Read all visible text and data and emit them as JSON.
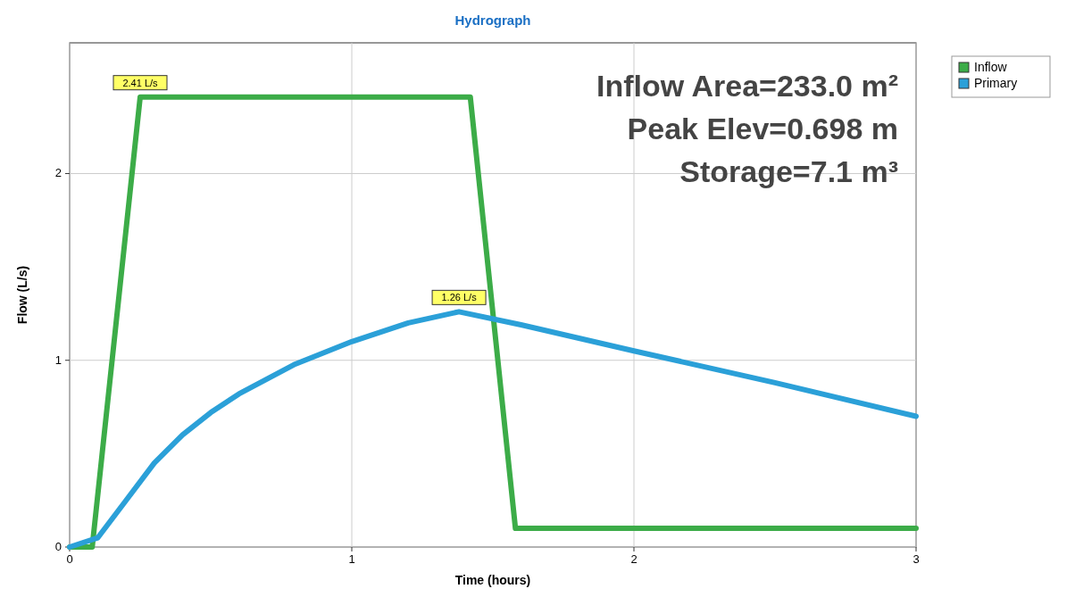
{
  "chart_data": {
    "type": "line",
    "title": "Hydrograph",
    "xlabel": "Time  (hours)",
    "ylabel": "Flow  (L/s)",
    "xlim": [
      0,
      3
    ],
    "ylim": [
      0,
      2.7
    ],
    "xticks": [
      0,
      1,
      2,
      3
    ],
    "yticks": [
      0,
      1,
      2
    ],
    "grid": true,
    "legend": "top right",
    "series": [
      {
        "name": "Inflow",
        "color": "#3cac48",
        "x": [
          0,
          0.08,
          0.25,
          1.42,
          1.58,
          3.0
        ],
        "values": [
          0,
          0,
          2.41,
          2.41,
          0.1,
          0.1
        ]
      },
      {
        "name": "Primary",
        "color": "#2ba0d8",
        "x": [
          0,
          0.1,
          0.2,
          0.3,
          0.4,
          0.5,
          0.6,
          0.8,
          1.0,
          1.2,
          1.38,
          1.6,
          2.0,
          2.5,
          3.0
        ],
        "values": [
          0,
          0.05,
          0.25,
          0.45,
          0.6,
          0.72,
          0.82,
          0.98,
          1.1,
          1.2,
          1.26,
          1.19,
          1.05,
          0.88,
          0.7
        ]
      }
    ],
    "annotations": [
      {
        "text": "2.41 L/s",
        "x": 0.25,
        "y": 2.41
      },
      {
        "text": "1.26 L/s",
        "x": 1.38,
        "y": 1.26
      },
      "Inflow Area=233.0 m²",
      "Peak Elev=0.698 m",
      "Storage=7.1 m³"
    ]
  }
}
